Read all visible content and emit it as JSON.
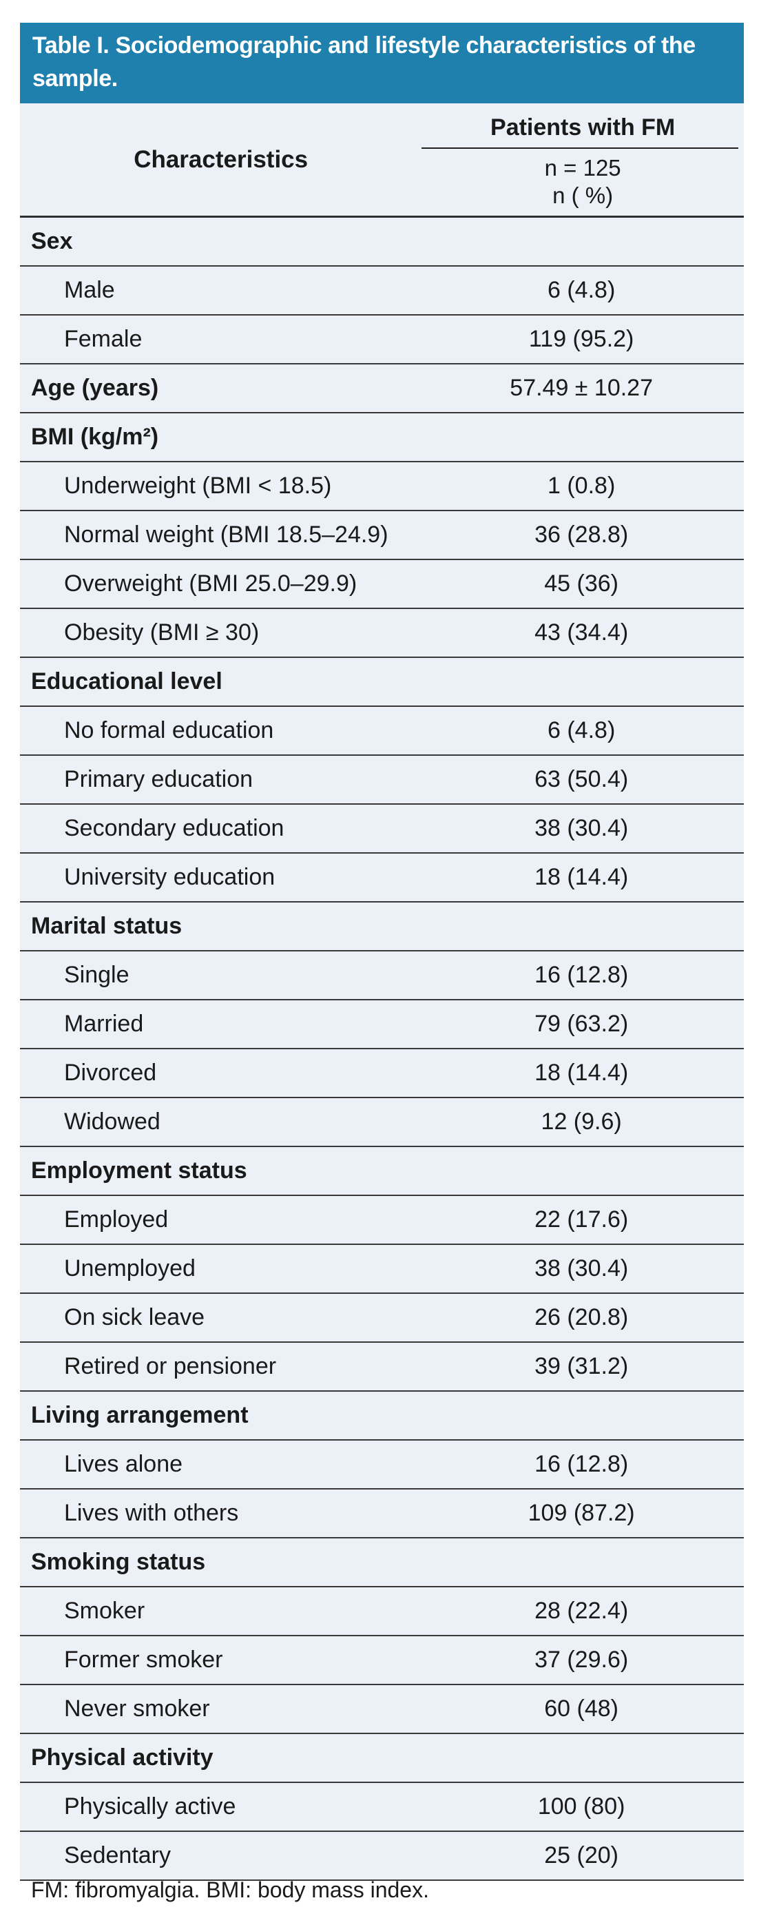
{
  "title": "Table I. Sociodemographic and lifestyle characteristics of the sample.",
  "header": {
    "characteristics": "Characteristics",
    "group": "Patients with FM",
    "n_total": "n = 125",
    "n_unit": "n ( %)"
  },
  "rows": [
    {
      "type": "section",
      "label": "Sex",
      "value": ""
    },
    {
      "type": "item",
      "label": "Male",
      "value": "6 (4.8)"
    },
    {
      "type": "item",
      "label": "Female",
      "value": "119 (95.2)"
    },
    {
      "type": "section",
      "label": "Age (years)",
      "value": "57.49 ± 10.27"
    },
    {
      "type": "section",
      "label": "BMI (kg/m²)",
      "value": ""
    },
    {
      "type": "item",
      "label": "Underweight (BMI < 18.5)",
      "value": "1 (0.8)"
    },
    {
      "type": "item",
      "label": "Normal weight (BMI 18.5–24.9)",
      "value": "36 (28.8)"
    },
    {
      "type": "item",
      "label": "Overweight (BMI 25.0–29.9)",
      "value": "45 (36)"
    },
    {
      "type": "item",
      "label": "Obesity (BMI ≥ 30)",
      "value": "43 (34.4)"
    },
    {
      "type": "section",
      "label": "Educational level",
      "value": ""
    },
    {
      "type": "item",
      "label": "No formal education",
      "value": "6 (4.8)"
    },
    {
      "type": "item",
      "label": "Primary education",
      "value": "63 (50.4)"
    },
    {
      "type": "item",
      "label": "Secondary education",
      "value": "38 (30.4)"
    },
    {
      "type": "item",
      "label": "University education",
      "value": "18 (14.4)"
    },
    {
      "type": "section",
      "label": "Marital status",
      "value": ""
    },
    {
      "type": "item",
      "label": "Single",
      "value": "16 (12.8)"
    },
    {
      "type": "item",
      "label": "Married",
      "value": "79 (63.2)"
    },
    {
      "type": "item",
      "label": "Divorced",
      "value": "18 (14.4)"
    },
    {
      "type": "item",
      "label": "Widowed",
      "value": "12 (9.6)"
    },
    {
      "type": "section",
      "label": "Employment status",
      "value": ""
    },
    {
      "type": "item",
      "label": "Employed",
      "value": "22 (17.6)"
    },
    {
      "type": "item",
      "label": "Unemployed",
      "value": "38 (30.4)"
    },
    {
      "type": "item",
      "label": "On sick leave",
      "value": "26 (20.8)"
    },
    {
      "type": "item",
      "label": "Retired or pensioner",
      "value": "39 (31.2)"
    },
    {
      "type": "section",
      "label": "Living arrangement",
      "value": ""
    },
    {
      "type": "item",
      "label": "Lives alone",
      "value": "16 (12.8)"
    },
    {
      "type": "item",
      "label": "Lives with others",
      "value": "109 (87.2)"
    },
    {
      "type": "section",
      "label": "Smoking status",
      "value": ""
    },
    {
      "type": "item",
      "label": "Smoker",
      "value": "28 (22.4)"
    },
    {
      "type": "item",
      "label": "Former smoker",
      "value": "37 (29.6)"
    },
    {
      "type": "item",
      "label": "Never smoker",
      "value": "60 (48)"
    },
    {
      "type": "section",
      "label": "Physical activity",
      "value": ""
    },
    {
      "type": "item",
      "label": "Physically active",
      "value": "100 (80)"
    },
    {
      "type": "item",
      "label": "Sedentary",
      "value": "25 (20)"
    }
  ],
  "footnote": "FM: fibromyalgia. BMI: body mass index.",
  "colors": {
    "header_bg": "#1F7FAD",
    "row_bg": "#ECF0F7",
    "divider": "#3A3A3A",
    "text": "#1A1A1A",
    "title_text": "#FFFFFF",
    "page_bg": "#FFFFFF"
  }
}
